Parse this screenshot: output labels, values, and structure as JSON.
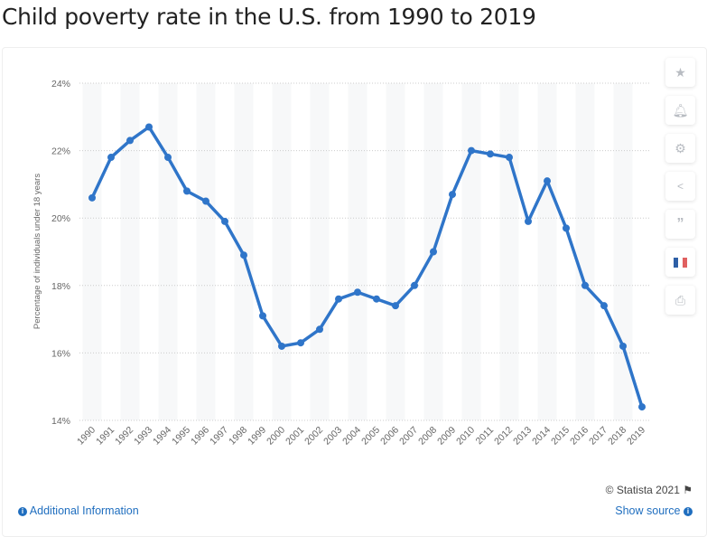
{
  "title": "Child poverty rate in the U.S. from 1990 to 2019",
  "chart_data": {
    "type": "line",
    "title": "Child poverty rate in the U.S. from 1990 to 2019",
    "xlabel": "",
    "ylabel": "Percentage of individuals under 18 years",
    "ylim": [
      14,
      24
    ],
    "yticks": [
      "14%",
      "16%",
      "18%",
      "20%",
      "22%",
      "24%"
    ],
    "ytick_values": [
      14,
      16,
      18,
      20,
      22,
      24
    ],
    "grid": true,
    "categories": [
      "1990",
      "1991",
      "1992",
      "1993",
      "1994",
      "1995",
      "1996",
      "1997",
      "1998",
      "1999",
      "2000",
      "2001",
      "2002",
      "2003",
      "2004",
      "2005",
      "2006",
      "2007",
      "2008",
      "2009",
      "2010",
      "2011",
      "2012",
      "2013",
      "2014",
      "2015",
      "2016",
      "2017",
      "2018",
      "2019"
    ],
    "values": [
      20.6,
      21.8,
      22.3,
      22.7,
      21.8,
      20.8,
      20.5,
      19.9,
      18.9,
      17.1,
      16.2,
      16.3,
      16.7,
      17.6,
      17.8,
      17.6,
      17.4,
      18.0,
      19.0,
      20.7,
      22.0,
      21.9,
      21.8,
      19.9,
      21.1,
      19.7,
      18.0,
      17.4,
      16.2,
      14.4
    ],
    "line_color": "#2f75c9"
  },
  "sidebar": {
    "icons": [
      "star-icon",
      "bell-icon",
      "gear-icon",
      "share-icon",
      "quote-icon",
      "flag-fr-icon",
      "print-icon"
    ]
  },
  "footer": {
    "credit": "© Statista 2021",
    "additional_info": "Additional Information",
    "show_source": "Show source"
  }
}
